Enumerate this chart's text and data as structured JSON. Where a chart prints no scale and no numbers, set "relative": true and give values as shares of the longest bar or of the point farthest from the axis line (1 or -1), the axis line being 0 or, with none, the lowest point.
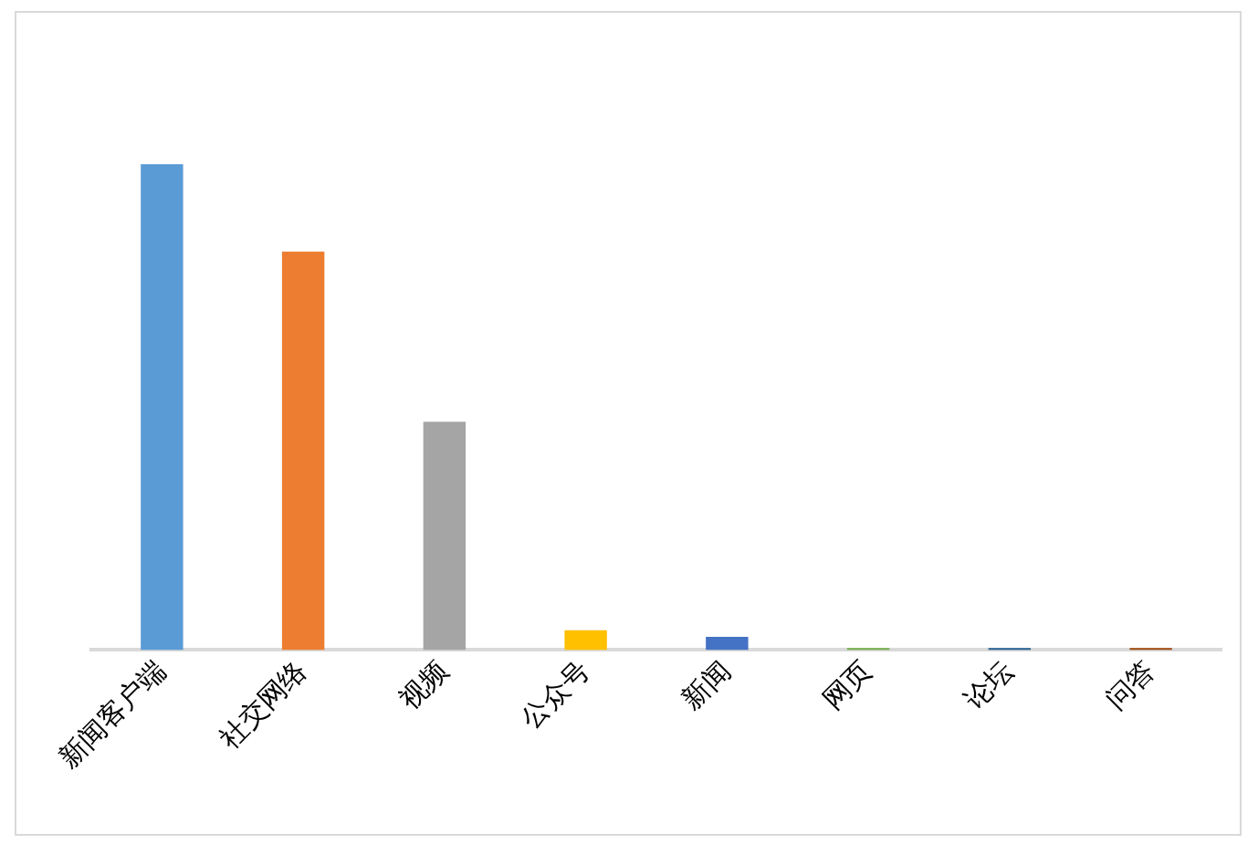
{
  "chart_data": {
    "type": "bar",
    "relative": true,
    "categories": [
      "新闻客户端",
      "社交网络",
      "视频",
      "公众号",
      "新闻",
      "网页",
      "论坛",
      "问答"
    ],
    "values": [
      1,
      0.82,
      0.47,
      0.041,
      0.027,
      0.004,
      0.004,
      0.004
    ],
    "colors": [
      "#5b9bd5",
      "#ed7d31",
      "#a5a5a5",
      "#ffc000",
      "#4472c4",
      "#70ad47",
      "#255e91",
      "#9e480e"
    ],
    "grid": false,
    "legend": false
  }
}
